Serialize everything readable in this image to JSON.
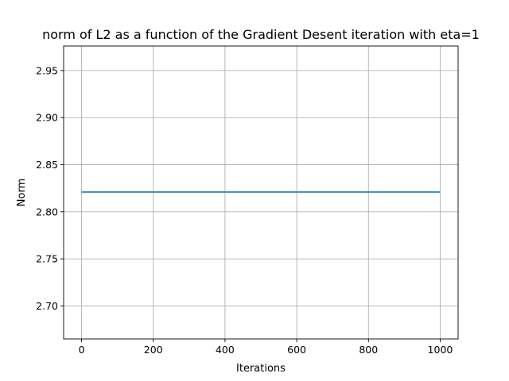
{
  "chart_data": {
    "type": "line",
    "title": "norm of L2 as a function of the Gradient Desent iteration with eta=1",
    "xlabel": "Iterations",
    "ylabel": "Norm",
    "xlim": [
      -50,
      1050
    ],
    "ylim": [
      2.665,
      2.976
    ],
    "xticks": [
      0,
      200,
      400,
      600,
      800,
      1000
    ],
    "xtick_labels": [
      "0",
      "200",
      "400",
      "600",
      "800",
      "1000"
    ],
    "yticks": [
      2.7,
      2.75,
      2.8,
      2.85,
      2.9,
      2.95
    ],
    "ytick_labels": [
      "2.70",
      "2.75",
      "2.80",
      "2.85",
      "2.90",
      "2.95"
    ],
    "grid": true,
    "series": [
      {
        "x": [
          0,
          1000
        ],
        "y": [
          2.821,
          2.821
        ],
        "color": "#1f77b4"
      }
    ]
  }
}
